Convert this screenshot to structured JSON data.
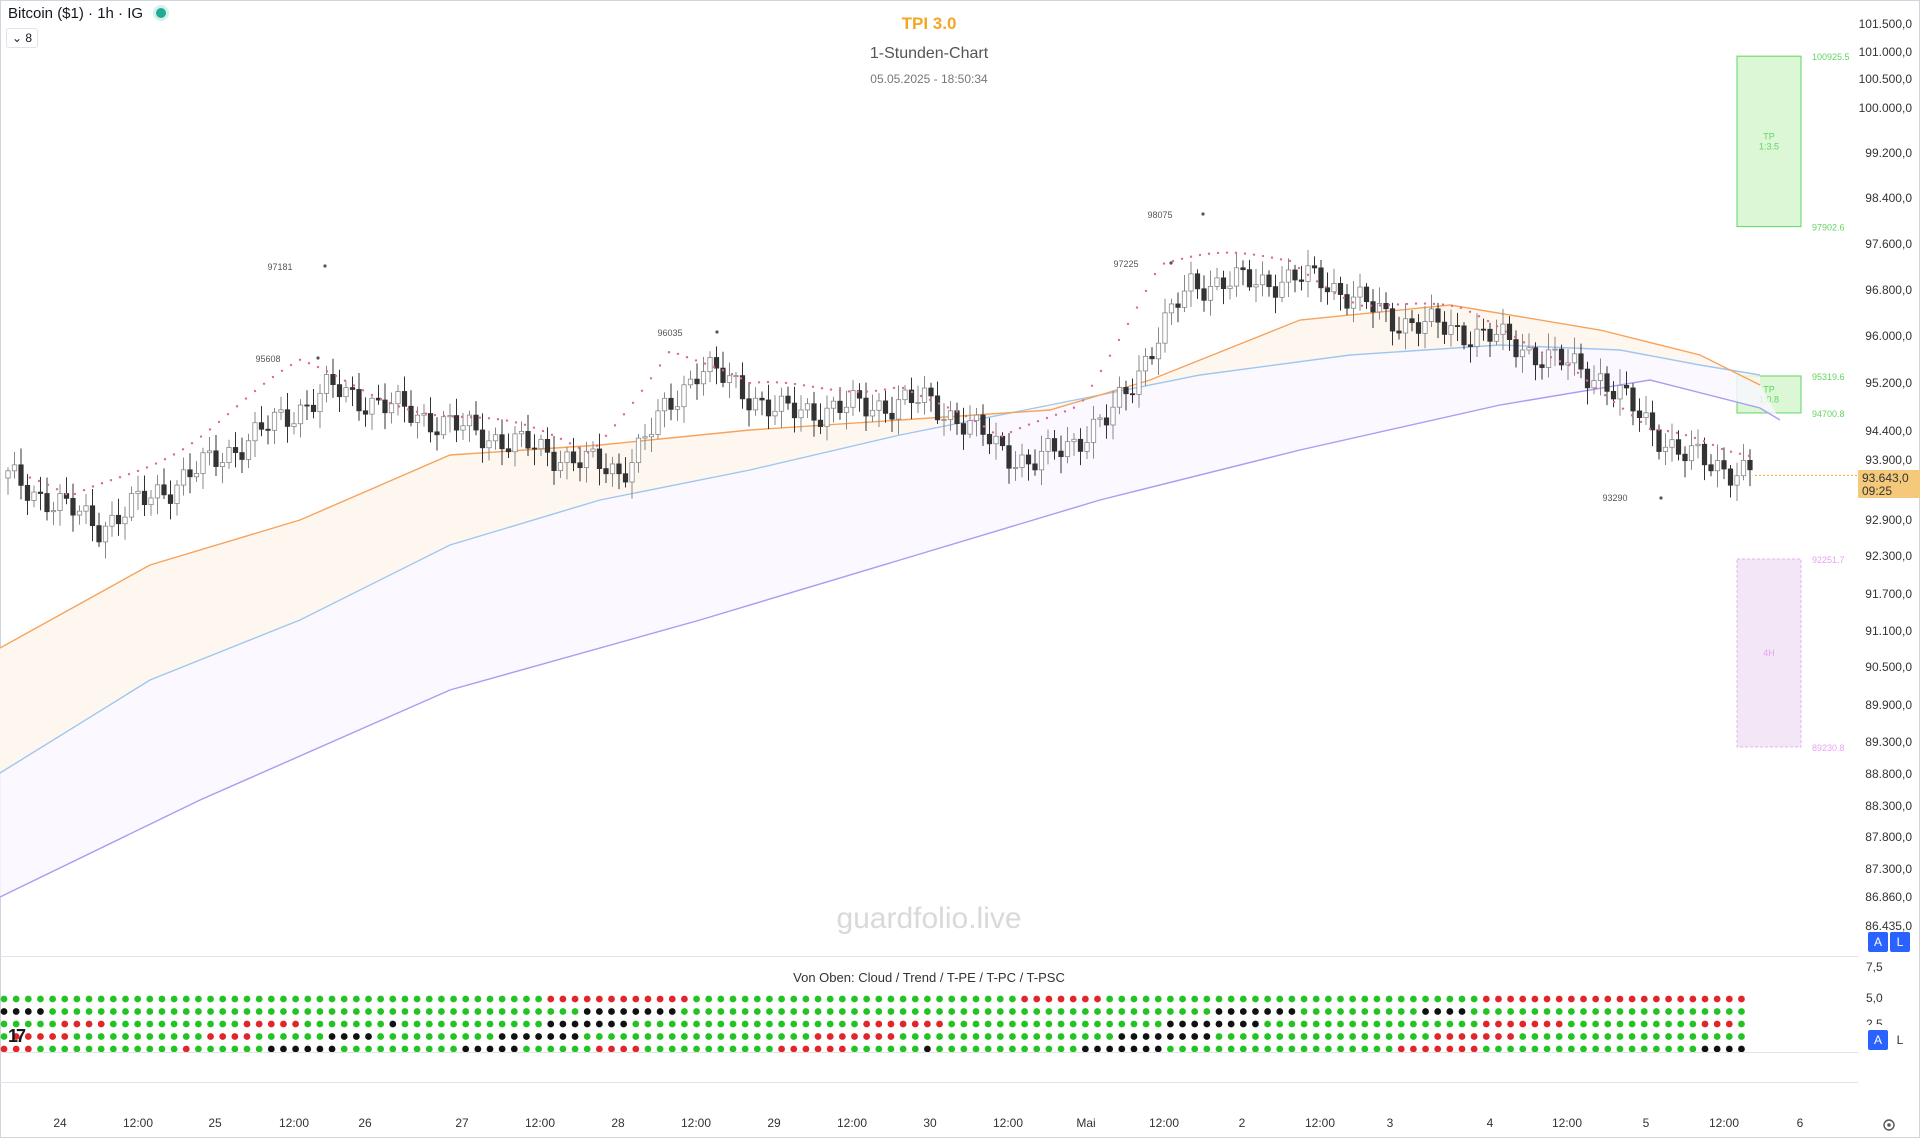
{
  "symbol": "Bitcoin ($1) · 1h · IG",
  "collapse_count": "8",
  "header": {
    "title": "TPI 3.0",
    "subtitle": "1-Stunden-Chart",
    "datetime": "05.05.2025 - 18:50:34"
  },
  "watermark": "guardfolio.live",
  "indicator_title": "Von Oben: Cloud / Trend / T-PE / T-PC / T-PSC",
  "price_axis": [
    "101.500,0",
    "101.000,0",
    "100.500,0",
    "100.000,0",
    "99.200,0",
    "98.400,0",
    "97.600,0",
    "96.800,0",
    "96.000,0",
    "95.200,0",
    "94.400,0",
    "93.900,0",
    "92.900,0",
    "92.300,0",
    "91.700,0",
    "91.100,0",
    "90.500,0",
    "89.900,0",
    "89.300,0",
    "88.800,0",
    "88.300,0",
    "87.800,0",
    "87.300,0",
    "86.860,0",
    "86.435,0"
  ],
  "current_price": {
    "value": "93.643,0",
    "countdown": "09:25"
  },
  "indicator_axis": [
    "7,5",
    "5,0",
    "2,5"
  ],
  "axis_buttons": {
    "a": "A",
    "l": "L"
  },
  "time_axis": [
    "24",
    "12:00",
    "25",
    "12:00",
    "26",
    "27",
    "12:00",
    "28",
    "12:00",
    "29",
    "12:00",
    "30",
    "12:00",
    "Mai",
    "12:00",
    "2",
    "12:00",
    "3",
    "4",
    "12:00",
    "5",
    "12:00",
    "6"
  ],
  "annotations": {
    "high_labels": [
      "97181",
      "95608",
      "96035",
      "98075",
      "97225"
    ],
    "low_label": "93290"
  },
  "targets": {
    "upper": {
      "top": "100925.5",
      "bottom": "97902.6",
      "label": "TP",
      "ratio": "1:3.5"
    },
    "middle": {
      "top": "95319.6",
      "bottom": "94700.8",
      "label": "TP",
      "ratio": "1:0.8"
    },
    "lower": {
      "top": "92251.7",
      "bottom": "89230.8",
      "label": "4H"
    }
  },
  "colors": {
    "bull_candle": "#5a8a2e",
    "bear_candle": "#333333",
    "up_candle_bright": "#3fc63f",
    "ema_fast": "#f7a35c",
    "ema_mid": "#9ec7ef",
    "ema_slow": "#a99cf2",
    "stop_dots": "#d86aa0",
    "target_fill": "#dbf7d6",
    "target_border": "#63d463",
    "stop_fill": "#f3e6f7",
    "dot_green": "#22c322",
    "dot_red": "#e0262b",
    "dot_black": "#111111",
    "current_label": "#f5c97a"
  },
  "chart_data": {
    "type": "candlestick",
    "ylim": [
      86435,
      101500
    ],
    "x_ticks": [
      "24",
      "12:00",
      "25",
      "12:00",
      "26",
      "27",
      "12:00",
      "28",
      "12:00",
      "29",
      "12:00",
      "30",
      "12:00",
      "Mai",
      "12:00",
      "2",
      "12:00",
      "3",
      "4",
      "12:00",
      "5",
      "12:00",
      "6"
    ],
    "price_trend_keypoints": [
      {
        "x": "24 00:00",
        "close": 93600
      },
      {
        "x": "24 06:00",
        "close": 92800
      },
      {
        "x": "25 00:00",
        "close": 93900
      },
      {
        "x": "26 00:00",
        "close": 95100
      },
      {
        "x": "27 00:00",
        "close": 94400
      },
      {
        "x": "28 00:00",
        "close": 93700
      },
      {
        "x": "28 12:00",
        "close": 95500
      },
      {
        "x": "29 00:00",
        "close": 94700
      },
      {
        "x": "30 00:00",
        "close": 94900
      },
      {
        "x": "30 12:00",
        "close": 93800
      },
      {
        "x": "Mai 00:00",
        "close": 94600
      },
      {
        "x": "Mai 12:00",
        "close": 96900
      },
      {
        "x": "2 12:00",
        "close": 97000
      },
      {
        "x": "3 00:00",
        "close": 96300
      },
      {
        "x": "4 00:00",
        "close": 96000
      },
      {
        "x": "5 00:00",
        "close": 95300
      },
      {
        "x": "5 12:00",
        "close": 94000
      },
      {
        "x": "5 18:00",
        "close": 93643
      }
    ],
    "current_price": 93643
  },
  "indicator_rows": {
    "count": 5,
    "dots_per_row": 144
  }
}
